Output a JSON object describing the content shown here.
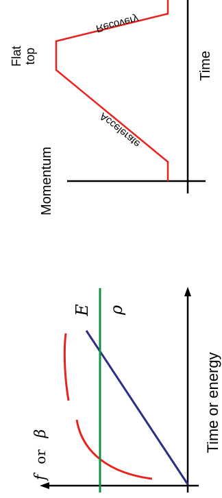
{
  "colors": {
    "axis": "#000000",
    "red": "#e8231f",
    "blue": "#2b2d86",
    "green": "#109145"
  },
  "top_diagram": {
    "y_label": "Momentum",
    "x_label": "Time",
    "phase_labels": {
      "recovery": "Recovery",
      "flat_top_line1": "Flat",
      "flat_top_line2": "top",
      "accelerate": "Accelerate"
    }
  },
  "bottom_diagram": {
    "x_label": "Time or energy",
    "labels": {
      "f": "f",
      "or": "or",
      "beta": "β",
      "energy": "E",
      "rho": "ρ"
    }
  }
}
